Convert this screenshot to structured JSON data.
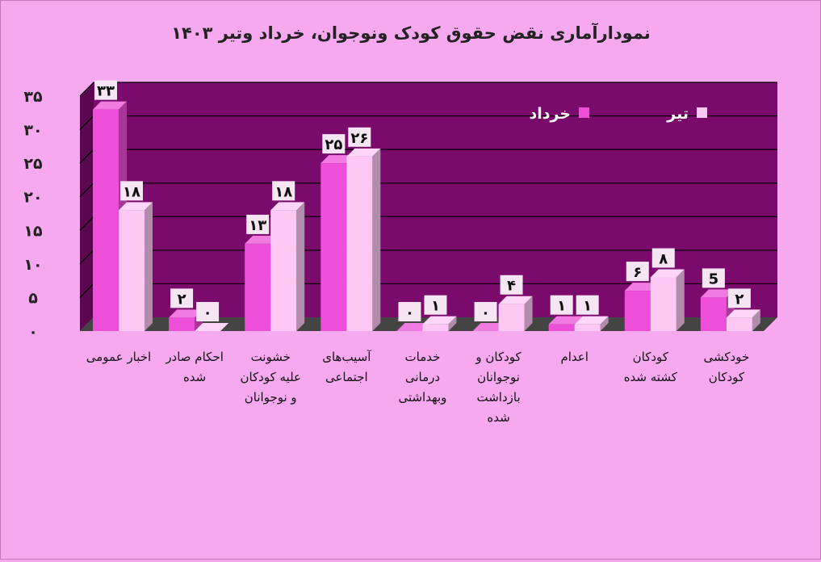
{
  "chart_data": {
    "type": "bar",
    "title": "نمودارآماری نقض حقوق کودک ونوجوان، خرداد وتیر ۱۴۰۳",
    "categories": [
      [
        "اخبار عمومی"
      ],
      [
        "احکام صادر",
        "شده"
      ],
      [
        "خشونت",
        "علیه کودکان",
        "و نوجوانان"
      ],
      [
        "آسیب‌های",
        "اجتماعی"
      ],
      [
        "خدمات",
        "درمانی",
        "وبهداشتی"
      ],
      [
        "کودکان و",
        "نوجوانان",
        "بازداشت",
        "شده"
      ],
      [
        "اعدام"
      ],
      [
        "کودکان",
        "کشته شده"
      ],
      [
        "خودکشی",
        "کودکان"
      ]
    ],
    "series": [
      {
        "name": "خرداد",
        "values": [
          33,
          2,
          13,
          25,
          0,
          0,
          1,
          6,
          5
        ],
        "labels": [
          "۳۳",
          "۲",
          "۱۳",
          "۲۵",
          "۰",
          "۰",
          "۱",
          "۶",
          "5"
        ],
        "color": "#ee4fd8"
      },
      {
        "name": "تیر",
        "values": [
          18,
          0,
          18,
          26,
          1,
          4,
          1,
          8,
          2
        ],
        "labels": [
          "۱۸",
          "۰",
          "۱۸",
          "۲۶",
          "۱",
          "۴",
          "۱",
          "۸",
          "۲"
        ],
        "color": "#fdc8f4"
      }
    ],
    "ylim": [
      0,
      35
    ],
    "yticks": [
      0,
      5,
      10,
      15,
      20,
      25,
      30,
      35
    ],
    "ytick_labels": [
      "۰",
      "۵",
      "۱۰",
      "۱۵",
      "۲۰",
      "۲۵",
      "۳۰",
      "۳۵"
    ],
    "grid": true,
    "legend": "top-right",
    "colors": {
      "background": "#f6a9ee",
      "plot_area": "#7a0a6c",
      "floor": "#444444"
    }
  }
}
